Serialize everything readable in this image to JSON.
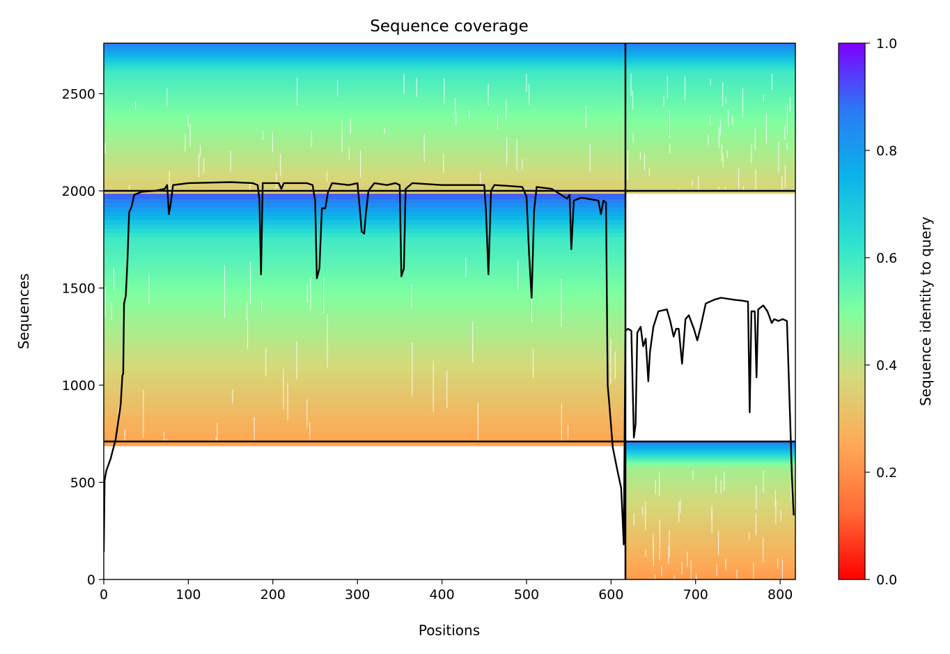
{
  "chart_data": {
    "type": "heatmap",
    "title": "Sequence coverage",
    "xlabel": "Positions",
    "ylabel": "Sequences",
    "xlim": [
      0,
      818
    ],
    "ylim": [
      0,
      2760
    ],
    "xticks": [
      0,
      100,
      200,
      300,
      400,
      500,
      600,
      700,
      800
    ],
    "yticks": [
      0,
      500,
      1000,
      1500,
      2000,
      2500
    ],
    "colorbar": {
      "label": "Sequence identity to query",
      "range": [
        0.0,
        1.0
      ],
      "ticks": [
        "0.0",
        "0.2",
        "0.4",
        "0.6",
        "0.8",
        "1.0"
      ],
      "colormap": "rainbow_r",
      "colors": [
        "#ff0000",
        "#ff7f3f",
        "#d4d97a",
        "#80ffa0",
        "#22d9d9",
        "#0ab4ea",
        "#2a7af5",
        "#7f00ff"
      ]
    },
    "chain_boundary_x": 617,
    "row_boundaries_y": [
      710,
      2000
    ],
    "blocks": [
      {
        "name": "chain A paired",
        "x": [
          0,
          617
        ],
        "y": [
          710,
          2000
        ],
        "identity_top": 0.92,
        "identity_mid": 0.6,
        "identity_bottom": 0.24
      },
      {
        "name": "chain A unpaired",
        "x": [
          0,
          617
        ],
        "y": [
          2000,
          2760
        ],
        "identity_top": 0.86,
        "identity_mid": 0.6,
        "identity_bottom": 0.34
      },
      {
        "name": "chain B paired",
        "x": [
          617,
          818
        ],
        "y": [
          0,
          710
        ],
        "identity_top": 0.86,
        "identity_mid": 0.45,
        "identity_bottom": 0.22
      },
      {
        "name": "chain B unpaired",
        "x": [
          617,
          818
        ],
        "y": [
          2000,
          2760
        ],
        "identity_top": 0.86,
        "identity_mid": 0.6,
        "identity_bottom": 0.36
      }
    ],
    "coverage_line": {
      "color": "#000000",
      "points": [
        [
          0,
          140
        ],
        [
          1,
          510
        ],
        [
          3,
          560
        ],
        [
          8,
          620
        ],
        [
          14,
          720
        ],
        [
          18,
          840
        ],
        [
          20,
          900
        ],
        [
          22,
          1050
        ],
        [
          23,
          1060
        ],
        [
          24,
          1420
        ],
        [
          26,
          1460
        ],
        [
          28,
          1640
        ],
        [
          30,
          1890
        ],
        [
          33,
          1920
        ],
        [
          36,
          1980
        ],
        [
          45,
          1995
        ],
        [
          60,
          2000
        ],
        [
          72,
          2010
        ],
        [
          75,
          2030
        ],
        [
          77,
          1880
        ],
        [
          79,
          1930
        ],
        [
          82,
          2030
        ],
        [
          100,
          2040
        ],
        [
          150,
          2045
        ],
        [
          176,
          2040
        ],
        [
          182,
          2030
        ],
        [
          184,
          1960
        ],
        [
          186,
          1570
        ],
        [
          188,
          2040
        ],
        [
          200,
          2040
        ],
        [
          207,
          2040
        ],
        [
          210,
          2010
        ],
        [
          213,
          2040
        ],
        [
          240,
          2040
        ],
        [
          247,
          2030
        ],
        [
          250,
          1950
        ],
        [
          252,
          1550
        ],
        [
          255,
          1600
        ],
        [
          258,
          1910
        ],
        [
          262,
          1910
        ],
        [
          265,
          1990
        ],
        [
          270,
          2040
        ],
        [
          290,
          2030
        ],
        [
          300,
          2040
        ],
        [
          303,
          1900
        ],
        [
          305,
          1790
        ],
        [
          308,
          1780
        ],
        [
          310,
          1880
        ],
        [
          313,
          2000
        ],
        [
          320,
          2040
        ],
        [
          335,
          2030
        ],
        [
          345,
          2040
        ],
        [
          350,
          2030
        ],
        [
          352,
          1560
        ],
        [
          355,
          1600
        ],
        [
          357,
          2010
        ],
        [
          365,
          2040
        ],
        [
          400,
          2030
        ],
        [
          450,
          2030
        ],
        [
          452,
          1900
        ],
        [
          455,
          1570
        ],
        [
          458,
          2000
        ],
        [
          462,
          2030
        ],
        [
          480,
          2025
        ],
        [
          495,
          2020
        ],
        [
          500,
          1970
        ],
        [
          503,
          1680
        ],
        [
          506,
          1450
        ],
        [
          509,
          1900
        ],
        [
          512,
          2020
        ],
        [
          530,
          2010
        ],
        [
          548,
          1960
        ],
        [
          551,
          1980
        ],
        [
          553,
          1700
        ],
        [
          556,
          1950
        ],
        [
          565,
          1965
        ],
        [
          585,
          1950
        ],
        [
          588,
          1880
        ],
        [
          591,
          1950
        ],
        [
          594,
          1940
        ],
        [
          596,
          1000
        ],
        [
          598,
          900
        ],
        [
          602,
          680
        ],
        [
          608,
          550
        ],
        [
          612,
          470
        ],
        [
          615,
          180
        ],
        [
          617,
          1280
        ],
        [
          620,
          1290
        ],
        [
          624,
          1280
        ],
        [
          627,
          730
        ],
        [
          629,
          800
        ],
        [
          631,
          1270
        ],
        [
          635,
          1300
        ],
        [
          638,
          1200
        ],
        [
          641,
          1240
        ],
        [
          644,
          1020
        ],
        [
          646,
          1170
        ],
        [
          650,
          1300
        ],
        [
          656,
          1380
        ],
        [
          666,
          1390
        ],
        [
          670,
          1330
        ],
        [
          674,
          1250
        ],
        [
          677,
          1290
        ],
        [
          680,
          1290
        ],
        [
          684,
          1110
        ],
        [
          688,
          1340
        ],
        [
          692,
          1360
        ],
        [
          698,
          1290
        ],
        [
          702,
          1230
        ],
        [
          706,
          1300
        ],
        [
          712,
          1420
        ],
        [
          722,
          1440
        ],
        [
          730,
          1450
        ],
        [
          745,
          1440
        ],
        [
          755,
          1435
        ],
        [
          762,
          1430
        ],
        [
          764,
          860
        ],
        [
          766,
          1380
        ],
        [
          770,
          1380
        ],
        [
          772,
          1040
        ],
        [
          774,
          1390
        ],
        [
          780,
          1410
        ],
        [
          785,
          1380
        ],
        [
          790,
          1320
        ],
        [
          793,
          1340
        ],
        [
          798,
          1330
        ],
        [
          803,
          1340
        ],
        [
          808,
          1330
        ],
        [
          812,
          800
        ],
        [
          814,
          520
        ],
        [
          816,
          330
        ]
      ]
    }
  }
}
